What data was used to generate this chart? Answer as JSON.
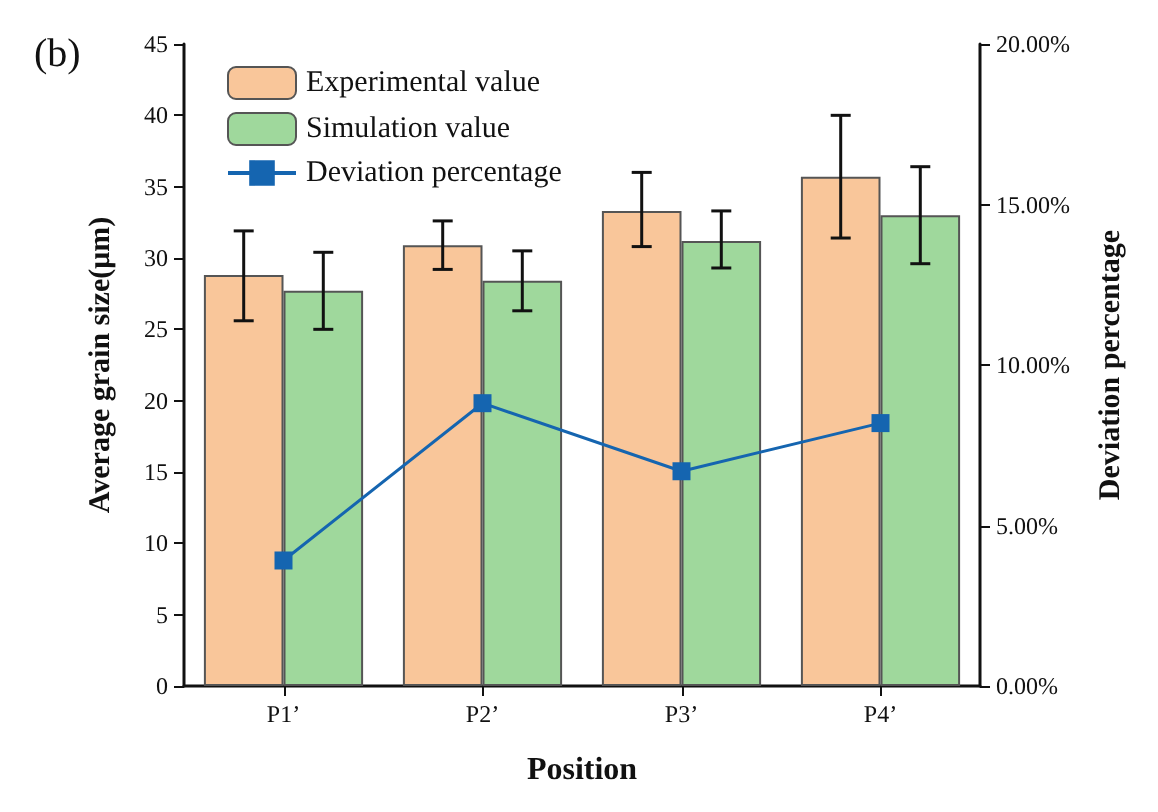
{
  "chart_data": {
    "type": "bar",
    "title": "(b)",
    "xlabel": "Position",
    "ylabel": "Average grain size(μm)",
    "y2label": "Deviation percentage",
    "categories": [
      "P1’",
      "P2’",
      "P3’",
      "P4’"
    ],
    "series": [
      {
        "name": "Experimental value",
        "color": "#f9c69a",
        "values": [
          28.8,
          30.9,
          33.3,
          35.7
        ],
        "errors": [
          [
            25.6,
            31.9
          ],
          [
            29.2,
            32.6
          ],
          [
            30.8,
            36.0
          ],
          [
            31.4,
            40.0
          ]
        ]
      },
      {
        "name": "Simulation value",
        "color": "#9fd89c",
        "values": [
          27.7,
          28.4,
          31.2,
          33.0
        ],
        "errors": [
          [
            25.0,
            30.4
          ],
          [
            26.3,
            30.5
          ],
          [
            29.3,
            33.3
          ],
          [
            29.6,
            36.4
          ]
        ]
      },
      {
        "name": "Deviation percentage",
        "type": "line",
        "axis": "y2",
        "color": "#1565b0",
        "marker": "square",
        "values": [
          3.91,
          8.81,
          6.69,
          8.19
        ]
      }
    ],
    "ylim": [
      0,
      45
    ],
    "yticks": [
      0,
      5,
      10,
      15,
      20,
      25,
      30,
      35,
      40,
      45
    ],
    "y2lim": [
      0,
      20
    ],
    "y2ticks": [
      {
        "value": 0,
        "label": "0.00%"
      },
      {
        "value": 5,
        "label": "5.00%"
      },
      {
        "value": 10,
        "label": "10.00%"
      },
      {
        "value": 15,
        "label": "15.00%"
      },
      {
        "value": 20,
        "label": "20.00%"
      }
    ],
    "legend": "top left",
    "grid": false
  }
}
